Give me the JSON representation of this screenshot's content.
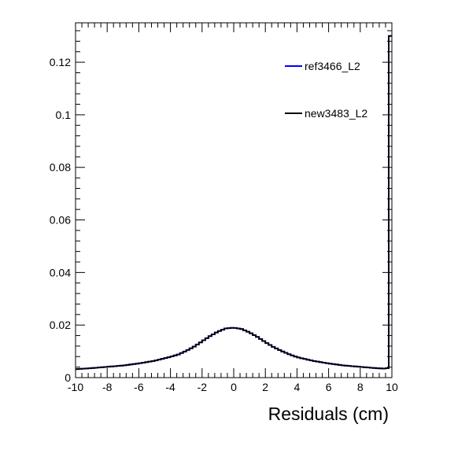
{
  "chart_data": {
    "type": "line",
    "step": true,
    "xlabel": "Residuals (cm)",
    "ylabel": "",
    "xlim": [
      -10,
      10
    ],
    "ylim": [
      0,
      0.135
    ],
    "x_ticks": [
      -10,
      -8,
      -6,
      -4,
      -2,
      0,
      2,
      4,
      6,
      8,
      10
    ],
    "x_tick_labels": [
      "-10",
      "-8",
      "-6",
      "-4",
      "-2",
      "0",
      "2",
      "4",
      "6",
      "8",
      "10"
    ],
    "y_ticks": [
      0,
      0.02,
      0.04,
      0.06,
      0.08,
      0.1,
      0.12
    ],
    "y_tick_labels": [
      "0",
      "0.02",
      "0.04",
      "0.06",
      "0.08",
      "0.1",
      "0.12"
    ],
    "legend_placement": "top-right",
    "series": [
      {
        "name": "ref3466_L2",
        "color": "#0000ff",
        "x": [
          -10,
          -9,
          -8,
          -7,
          -6,
          -5,
          -4,
          -3.5,
          -3,
          -2.5,
          -2,
          -1.5,
          -1,
          -0.5,
          0,
          0.5,
          1,
          1.5,
          2,
          2.5,
          3,
          3.5,
          4,
          5,
          6,
          7,
          8,
          9,
          9.6,
          9.8,
          10
        ],
        "y": [
          0.0032,
          0.0036,
          0.0041,
          0.0046,
          0.0054,
          0.0064,
          0.0079,
          0.0088,
          0.0102,
          0.0118,
          0.0138,
          0.0158,
          0.0175,
          0.0187,
          0.019,
          0.0185,
          0.0172,
          0.0155,
          0.0135,
          0.0117,
          0.0102,
          0.0089,
          0.0078,
          0.0064,
          0.0054,
          0.0046,
          0.0041,
          0.0036,
          0.0034,
          0.0038,
          0.13
        ]
      },
      {
        "name": "new3483_L2",
        "color": "#000000",
        "x": [
          -10,
          -9,
          -8,
          -7,
          -6,
          -5,
          -4,
          -3.5,
          -3,
          -2.5,
          -2,
          -1.5,
          -1,
          -0.5,
          0,
          0.5,
          1,
          1.5,
          2,
          2.5,
          3,
          3.5,
          4,
          5,
          6,
          7,
          8,
          9,
          9.6,
          9.8,
          10
        ],
        "y": [
          0.0032,
          0.0036,
          0.0041,
          0.0046,
          0.0054,
          0.0064,
          0.0079,
          0.0088,
          0.0102,
          0.0118,
          0.0138,
          0.0158,
          0.0175,
          0.0187,
          0.019,
          0.0185,
          0.0172,
          0.0155,
          0.0135,
          0.0117,
          0.0102,
          0.0089,
          0.0078,
          0.0064,
          0.0054,
          0.0046,
          0.0041,
          0.0036,
          0.0034,
          0.0038,
          0.13
        ]
      }
    ]
  }
}
